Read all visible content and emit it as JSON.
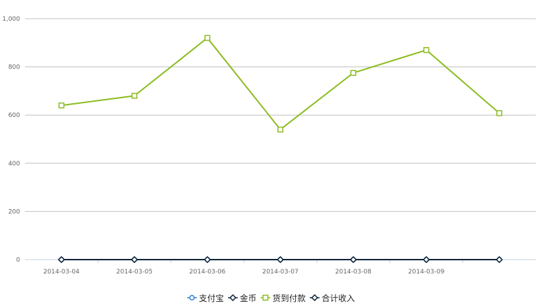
{
  "chart_data": {
    "type": "line",
    "title": "",
    "xlabel": "",
    "ylabel": "",
    "categories": [
      "2014-03-04",
      "2014-03-05",
      "2014-03-06",
      "2014-03-07",
      "2014-03-08",
      "2014-03-09",
      ""
    ],
    "ylim": [
      0,
      1000
    ],
    "yticks": [
      "0",
      "200",
      "400",
      "600",
      "800",
      "1,000"
    ],
    "grid": true,
    "legend_position": "bottom-center",
    "series": [
      {
        "name": "支付宝",
        "values": [
          0,
          0,
          0,
          0,
          0,
          0,
          0
        ],
        "color": "#2f7ed8",
        "marker": "circle"
      },
      {
        "name": "金币",
        "values": [
          0,
          0,
          0,
          0,
          0,
          0,
          0
        ],
        "color": "#0d233a",
        "marker": "diamond"
      },
      {
        "name": "货到付款",
        "values": [
          640,
          680,
          920,
          540,
          775,
          870,
          608
        ],
        "color": "#8bbc21",
        "marker": "square"
      },
      {
        "name": "合计收入",
        "values": [
          0,
          0,
          0,
          0,
          0,
          0,
          0
        ],
        "color": "#0d233a",
        "marker": "diamond"
      }
    ]
  }
}
